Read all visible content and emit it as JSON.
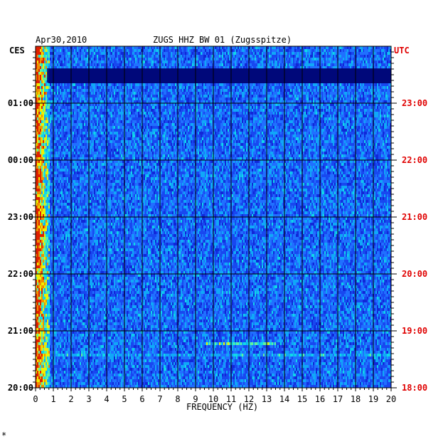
{
  "header": {
    "date": "Apr30,2010",
    "station": "ZUGS HHZ BW 01 (Zugsspitze)"
  },
  "left_axis": {
    "label": "CES",
    "ticks": [
      "01:00",
      "00:00",
      "23:00",
      "22:00",
      "21:00",
      "20:00"
    ]
  },
  "right_axis": {
    "label": "UTC",
    "ticks": [
      "23:00",
      "22:00",
      "21:00",
      "20:00",
      "19:00",
      "18:00"
    ]
  },
  "footer_mark": "*",
  "colors": {
    "background_blue": "#1028d8",
    "dark_band": "#00087a",
    "utc_red": "#e00000",
    "grid": "#000000",
    "cyan": "#10d8e8",
    "yellow": "#f0f000",
    "red": "#e02000"
  },
  "chart_data": {
    "type": "heatmap",
    "title": "ZUGS HHZ BW 01 (Zugsspitze)",
    "date": "Apr30,2010",
    "xlabel": "FREQUENCY (HZ)",
    "x_ticks": [
      0,
      1,
      2,
      3,
      4,
      5,
      6,
      7,
      8,
      9,
      10,
      11,
      12,
      13,
      14,
      15,
      16,
      17,
      18,
      19,
      20
    ],
    "xlim": [
      0,
      20
    ],
    "y_left_label": "CES",
    "y_left_ticks": [
      "01:00",
      "00:00",
      "23:00",
      "22:00",
      "21:00",
      "20:00"
    ],
    "y_right_label": "UTC",
    "y_right_ticks": [
      "23:00",
      "22:00",
      "21:00",
      "20:00",
      "19:00",
      "18:00"
    ],
    "grid": true,
    "colorscale": [
      "dark blue",
      "blue",
      "cyan",
      "yellow",
      "red"
    ]
  }
}
